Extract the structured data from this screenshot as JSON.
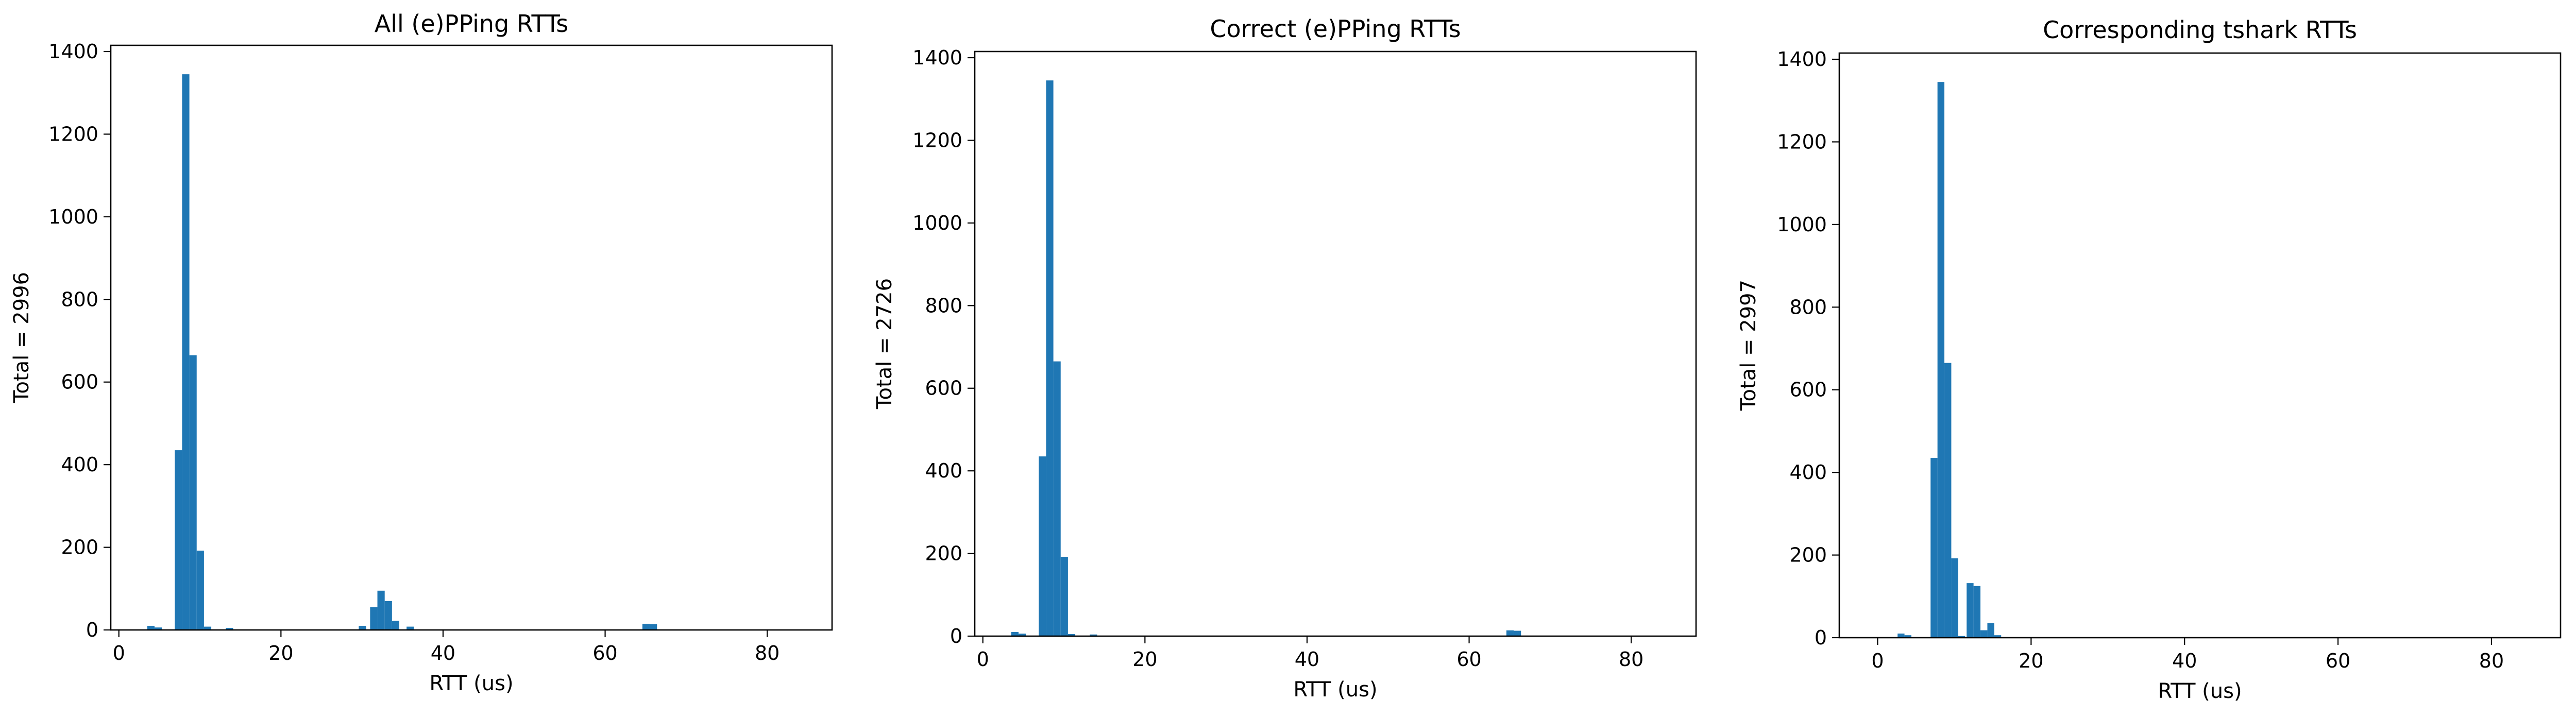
{
  "figure": {
    "bar_color": "#1f77b4",
    "axis_color": "#000000",
    "background": "#ffffff"
  },
  "chart_data": [
    {
      "type": "bar",
      "title": "All (e)PPing RTTs",
      "xlabel": "RTT (us)",
      "ylabel": "Total = 2996",
      "xlim": [
        -1,
        88
      ],
      "ylim": [
        0,
        1415
      ],
      "xticks": [
        0,
        20,
        40,
        60,
        80
      ],
      "yticks": [
        0,
        200,
        400,
        600,
        800,
        1000,
        1200,
        1400
      ],
      "bin_width": 0.9,
      "bins": [
        {
          "x": 3.5,
          "value": 10
        },
        {
          "x": 4.4,
          "value": 6
        },
        {
          "x": 6.9,
          "value": 435
        },
        {
          "x": 7.8,
          "value": 1345
        },
        {
          "x": 8.7,
          "value": 665
        },
        {
          "x": 9.6,
          "value": 192
        },
        {
          "x": 10.5,
          "value": 8
        },
        {
          "x": 13.2,
          "value": 5
        },
        {
          "x": 29.6,
          "value": 10
        },
        {
          "x": 31.0,
          "value": 55
        },
        {
          "x": 31.9,
          "value": 95
        },
        {
          "x": 32.8,
          "value": 70
        },
        {
          "x": 33.7,
          "value": 22
        },
        {
          "x": 35.5,
          "value": 8
        },
        {
          "x": 64.6,
          "value": 15
        },
        {
          "x": 65.5,
          "value": 14
        }
      ]
    },
    {
      "type": "bar",
      "title": "Correct (e)PPing RTTs",
      "xlabel": "RTT (us)",
      "ylabel": "Total = 2726",
      "xlim": [
        -1,
        88
      ],
      "ylim": [
        0,
        1415
      ],
      "xticks": [
        0,
        20,
        40,
        60,
        80
      ],
      "yticks": [
        0,
        200,
        400,
        600,
        800,
        1000,
        1200,
        1400
      ],
      "bin_width": 0.9,
      "bins": [
        {
          "x": 3.5,
          "value": 10
        },
        {
          "x": 4.4,
          "value": 6
        },
        {
          "x": 6.9,
          "value": 435
        },
        {
          "x": 7.8,
          "value": 1345
        },
        {
          "x": 8.7,
          "value": 665
        },
        {
          "x": 9.6,
          "value": 192
        },
        {
          "x": 10.5,
          "value": 5
        },
        {
          "x": 13.2,
          "value": 4
        },
        {
          "x": 64.6,
          "value": 14
        },
        {
          "x": 65.5,
          "value": 13
        }
      ]
    },
    {
      "type": "bar",
      "title": "Corresponding tshark RTTs",
      "xlabel": "RTT (us)",
      "ylabel": "Total = 2997",
      "xlim": [
        -5,
        89
      ],
      "ylim": [
        0,
        1415
      ],
      "xticks": [
        0,
        20,
        40,
        60,
        80
      ],
      "yticks": [
        0,
        200,
        400,
        600,
        800,
        1000,
        1200,
        1400
      ],
      "bin_width": 0.9,
      "bins": [
        {
          "x": 2.6,
          "value": 10
        },
        {
          "x": 3.5,
          "value": 6
        },
        {
          "x": 6.9,
          "value": 435
        },
        {
          "x": 7.8,
          "value": 1345
        },
        {
          "x": 8.7,
          "value": 665
        },
        {
          "x": 9.6,
          "value": 192
        },
        {
          "x": 10.5,
          "value": 4
        },
        {
          "x": 11.6,
          "value": 132
        },
        {
          "x": 12.5,
          "value": 125
        },
        {
          "x": 13.4,
          "value": 18
        },
        {
          "x": 14.3,
          "value": 35
        },
        {
          "x": 15.2,
          "value": 6
        }
      ]
    }
  ]
}
